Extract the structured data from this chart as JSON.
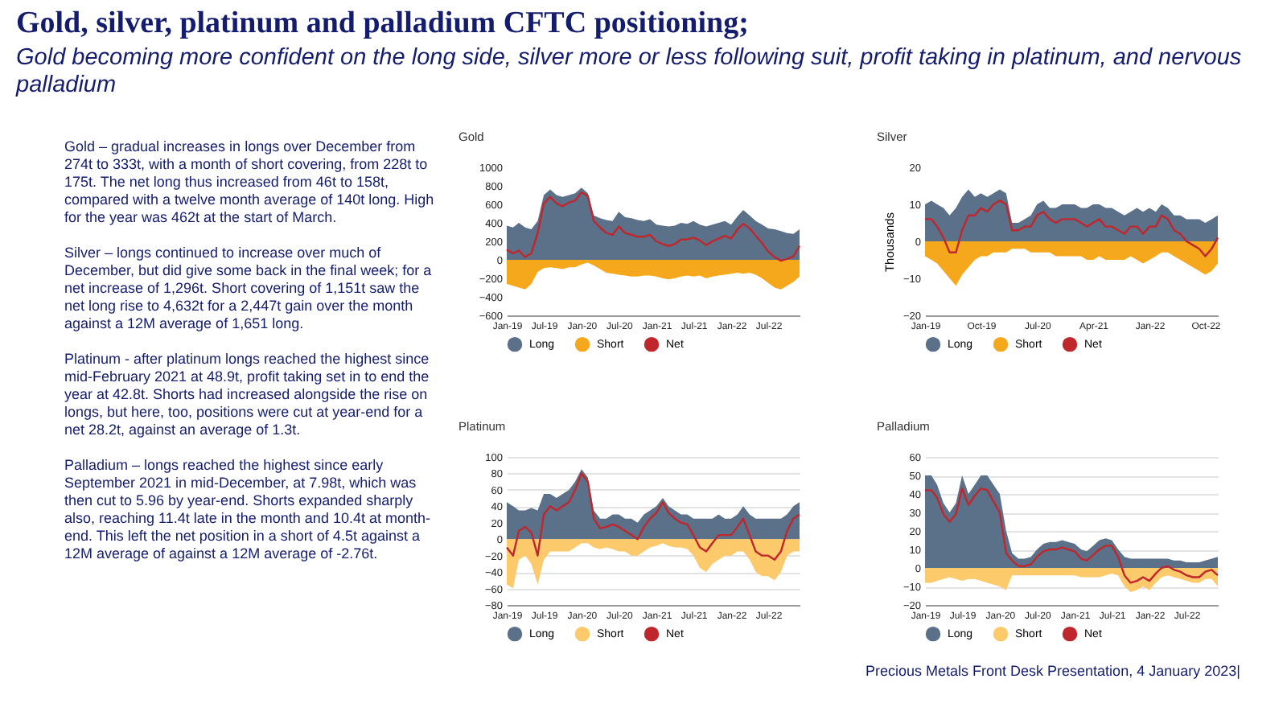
{
  "chart_data": [
    {
      "type": "other",
      "title": "Gold, silver, platinum and palladium CFTC positioning;",
      "subtitle": "Gold becoming more confident on the long side, silver more or less following suit, profit taking in platinum, and nervous palladium",
      "annotations": [
        "Gold – gradual increases in longs over December from 274t to 333t, with a month of short covering, from 228t to 175t.  The net long thus increased from 46t to 158t, compared with a twelve month average of 140t long. High for the year was 462t at the start of March.",
        "Silver – longs continued to increase over much of December, but did give some back in the final week; for a net increase of 1,296t.  Short covering of 1,151t saw the net long rise to 4,632t for a 2,447t gain over the month against a 12M average of 1,651 long.",
        "Platinum - after platinum longs reached the highest since mid-February 2021 at 48.9t, profit taking set in to end the year at 42.8t.  Shorts had increased alongside the rise on longs, but here, too, positions were cut at year-end for a net 28.2t, against an average of 1.3t.",
        "Palladium – longs reached the highest since early September 2021 in mid-December,  at 7.98t, which was then cut to 5.96 by year-end.  Shorts expanded sharply also, reaching 11.4t late in the month and 10.4t at month-end.  This left the net position in a short of 4.5t against a 12M average of against a 12M average of -2.76t.",
        "Precious Metals Front Desk Presentation, 4 January 2023|"
      ]
    },
    {
      "type": "area",
      "title": "Gold",
      "legend": "bottom",
      "xlim": [
        "2019-01",
        "2022-12"
      ],
      "ylim": [
        -600,
        1000
      ],
      "yticks": [
        -600,
        -400,
        -200,
        0,
        200,
        400,
        600,
        800,
        1000
      ],
      "xticks": [
        {
          "value": "2019-01",
          "label": "Jan-19"
        },
        {
          "value": "2019-07",
          "label": "Jul-19"
        },
        {
          "value": "2020-01",
          "label": "Jan-20"
        },
        {
          "value": "2020-07",
          "label": "Jul-20"
        },
        {
          "value": "2021-01",
          "label": "Jan-21"
        },
        {
          "value": "2021-07",
          "label": "Jul-21"
        },
        {
          "value": "2022-01",
          "label": "Jan-22"
        },
        {
          "value": "2022-07",
          "label": "Jul-22"
        }
      ],
      "x": [
        "2019-01",
        "2019-02",
        "2019-03",
        "2019-04",
        "2019-05",
        "2019-06",
        "2019-07",
        "2019-08",
        "2019-09",
        "2019-10",
        "2019-11",
        "2019-12",
        "2020-01",
        "2020-02",
        "2020-03",
        "2020-04",
        "2020-05",
        "2020-06",
        "2020-07",
        "2020-08",
        "2020-09",
        "2020-10",
        "2020-11",
        "2020-12",
        "2021-01",
        "2021-02",
        "2021-03",
        "2021-04",
        "2021-05",
        "2021-06",
        "2021-07",
        "2021-08",
        "2021-09",
        "2021-10",
        "2021-11",
        "2021-12",
        "2022-01",
        "2022-02",
        "2022-03",
        "2022-04",
        "2022-05",
        "2022-06",
        "2022-07",
        "2022-08",
        "2022-09",
        "2022-10",
        "2022-11",
        "2022-12"
      ],
      "series": [
        {
          "name": "Long",
          "color": "#5b7089",
          "values": [
            370,
            350,
            400,
            350,
            330,
            420,
            700,
            760,
            700,
            680,
            700,
            720,
            780,
            720,
            480,
            450,
            430,
            420,
            520,
            460,
            450,
            430,
            420,
            440,
            380,
            370,
            360,
            370,
            400,
            390,
            420,
            380,
            360,
            380,
            400,
            420,
            380,
            470,
            540,
            480,
            420,
            380,
            340,
            330,
            310,
            290,
            280,
            330
          ]
        },
        {
          "name": "Short",
          "color": "#f5a81c",
          "values": [
            -260,
            -280,
            -300,
            -320,
            -260,
            -130,
            -90,
            -80,
            -90,
            -100,
            -80,
            -80,
            -50,
            -30,
            -60,
            -100,
            -140,
            -150,
            -160,
            -170,
            -180,
            -180,
            -170,
            -170,
            -180,
            -200,
            -210,
            -200,
            -180,
            -170,
            -180,
            -170,
            -200,
            -180,
            -170,
            -160,
            -150,
            -140,
            -150,
            -140,
            -160,
            -200,
            -250,
            -300,
            -320,
            -280,
            -240,
            -180
          ]
        },
        {
          "name": "Net",
          "type": "line",
          "color": "#c0272d",
          "values": [
            110,
            70,
            100,
            30,
            70,
            290,
            610,
            680,
            610,
            580,
            620,
            640,
            730,
            690,
            420,
            350,
            290,
            270,
            360,
            290,
            270,
            250,
            250,
            270,
            200,
            170,
            150,
            170,
            220,
            220,
            240,
            210,
            160,
            200,
            230,
            260,
            230,
            330,
            390,
            340,
            260,
            180,
            90,
            30,
            -10,
            10,
            40,
            150
          ]
        }
      ]
    },
    {
      "type": "area",
      "title": "Silver",
      "ylabel": "Thousands",
      "legend": "bottom",
      "xlim": [
        "2019-01",
        "2022-12"
      ],
      "ylim": [
        -20,
        20
      ],
      "yticks": [
        -20,
        -10,
        0,
        10,
        20
      ],
      "xticks": [
        {
          "value": "2019-01",
          "label": "Jan-19"
        },
        {
          "value": "2019-10",
          "label": "Oct-19"
        },
        {
          "value": "2020-07",
          "label": "Jul-20"
        },
        {
          "value": "2021-04",
          "label": "Apr-21"
        },
        {
          "value": "2022-01",
          "label": "Jan-22"
        },
        {
          "value": "2022-10",
          "label": "Oct-22"
        }
      ],
      "x": [
        "2019-01",
        "2019-02",
        "2019-03",
        "2019-04",
        "2019-05",
        "2019-06",
        "2019-07",
        "2019-08",
        "2019-09",
        "2019-10",
        "2019-11",
        "2019-12",
        "2020-01",
        "2020-02",
        "2020-03",
        "2020-04",
        "2020-05",
        "2020-06",
        "2020-07",
        "2020-08",
        "2020-09",
        "2020-10",
        "2020-11",
        "2020-12",
        "2021-01",
        "2021-02",
        "2021-03",
        "2021-04",
        "2021-05",
        "2021-06",
        "2021-07",
        "2021-08",
        "2021-09",
        "2021-10",
        "2021-11",
        "2021-12",
        "2022-01",
        "2022-02",
        "2022-03",
        "2022-04",
        "2022-05",
        "2022-06",
        "2022-07",
        "2022-08",
        "2022-09",
        "2022-10",
        "2022-11",
        "2022-12"
      ],
      "series": [
        {
          "name": "Long",
          "color": "#5b7089",
          "values": [
            10,
            11,
            10,
            9,
            7,
            9,
            12,
            14,
            12,
            13,
            12,
            13,
            14,
            13,
            5,
            5,
            6,
            7,
            10,
            11,
            9,
            9,
            10,
            10,
            10,
            9,
            9,
            10,
            10,
            9,
            9,
            8,
            7,
            8,
            9,
            8,
            9,
            8,
            10,
            9,
            7,
            7,
            6,
            6,
            6,
            5,
            6,
            7
          ]
        },
        {
          "name": "Short",
          "color": "#f5a81c",
          "values": [
            -4,
            -5,
            -6,
            -8,
            -10,
            -12,
            -9,
            -7,
            -5,
            -4,
            -4,
            -3,
            -3,
            -3,
            -2,
            -2,
            -2,
            -3,
            -3,
            -3,
            -3,
            -4,
            -4,
            -4,
            -4,
            -4,
            -5,
            -5,
            -4,
            -5,
            -5,
            -5,
            -5,
            -4,
            -5,
            -6,
            -5,
            -4,
            -3,
            -3,
            -4,
            -5,
            -6,
            -7,
            -8,
            -9,
            -8,
            -6
          ]
        },
        {
          "name": "Net",
          "type": "line",
          "color": "#c0272d",
          "values": [
            6,
            6,
            4,
            1,
            -3,
            -3,
            3,
            7,
            7,
            9,
            8,
            10,
            11,
            10,
            3,
            3,
            4,
            4,
            7,
            8,
            6,
            5,
            6,
            6,
            6,
            5,
            4,
            5,
            6,
            4,
            4,
            3,
            2,
            4,
            4,
            2,
            4,
            4,
            7,
            6,
            3,
            2,
            0,
            -1,
            -2,
            -4,
            -2,
            1
          ]
        }
      ]
    },
    {
      "type": "area",
      "title": "Platinum",
      "legend": "bottom",
      "grid": "y",
      "xlim": [
        "2019-01",
        "2022-12"
      ],
      "ylim": [
        -80,
        100
      ],
      "yticks": [
        -80,
        -60,
        -40,
        -20,
        0,
        20,
        40,
        60,
        80,
        100
      ],
      "xticks": [
        {
          "value": "2019-01",
          "label": "Jan-19"
        },
        {
          "value": "2019-07",
          "label": "Jul-19"
        },
        {
          "value": "2020-01",
          "label": "Jan-20"
        },
        {
          "value": "2020-07",
          "label": "Jul-20"
        },
        {
          "value": "2021-01",
          "label": "Jan-21"
        },
        {
          "value": "2021-07",
          "label": "Jul-21"
        },
        {
          "value": "2022-01",
          "label": "Jan-22"
        },
        {
          "value": "2022-07",
          "label": "Jul-22"
        }
      ],
      "x": [
        "2019-01",
        "2019-02",
        "2019-03",
        "2019-04",
        "2019-05",
        "2019-06",
        "2019-07",
        "2019-08",
        "2019-09",
        "2019-10",
        "2019-11",
        "2019-12",
        "2020-01",
        "2020-02",
        "2020-03",
        "2020-04",
        "2020-05",
        "2020-06",
        "2020-07",
        "2020-08",
        "2020-09",
        "2020-10",
        "2020-11",
        "2020-12",
        "2021-01",
        "2021-02",
        "2021-03",
        "2021-04",
        "2021-05",
        "2021-06",
        "2021-07",
        "2021-08",
        "2021-09",
        "2021-10",
        "2021-11",
        "2021-12",
        "2022-01",
        "2022-02",
        "2022-03",
        "2022-04",
        "2022-05",
        "2022-06",
        "2022-07",
        "2022-08",
        "2022-09",
        "2022-10",
        "2022-11",
        "2022-12"
      ],
      "series": [
        {
          "name": "Long",
          "color": "#5b7089",
          "values": [
            45,
            40,
            35,
            35,
            38,
            35,
            55,
            55,
            50,
            55,
            60,
            70,
            85,
            75,
            35,
            25,
            25,
            30,
            30,
            25,
            25,
            20,
            30,
            35,
            40,
            50,
            40,
            35,
            30,
            30,
            25,
            25,
            25,
            25,
            30,
            25,
            25,
            30,
            40,
            30,
            25,
            25,
            25,
            25,
            25,
            30,
            40,
            45
          ]
        },
        {
          "name": "Short",
          "color": "#fcc96b",
          "values": [
            -55,
            -60,
            -25,
            -20,
            -30,
            -55,
            -25,
            -15,
            -15,
            -15,
            -15,
            -10,
            -5,
            -5,
            -10,
            -12,
            -10,
            -12,
            -15,
            -15,
            -20,
            -20,
            -15,
            -10,
            -8,
            -5,
            -8,
            -10,
            -10,
            -12,
            -20,
            -35,
            -40,
            -30,
            -25,
            -20,
            -20,
            -15,
            -15,
            -25,
            -40,
            -45,
            -45,
            -50,
            -40,
            -20,
            -15,
            -15
          ]
        },
        {
          "name": "Net",
          "type": "line",
          "color": "#c0272d",
          "values": [
            -10,
            -20,
            10,
            15,
            8,
            -20,
            30,
            40,
            35,
            40,
            45,
            60,
            80,
            70,
            25,
            13,
            15,
            18,
            15,
            10,
            5,
            0,
            15,
            25,
            32,
            45,
            32,
            25,
            20,
            18,
            5,
            -10,
            -15,
            -5,
            5,
            5,
            5,
            15,
            25,
            5,
            -15,
            -20,
            -20,
            -25,
            -15,
            10,
            25,
            30
          ]
        }
      ]
    },
    {
      "type": "area",
      "title": "Palladium",
      "legend": "bottom",
      "grid": "y",
      "xlim": [
        "2019-01",
        "2022-12"
      ],
      "ylim": [
        -20,
        60
      ],
      "yticks": [
        -20,
        -10,
        0,
        10,
        20,
        30,
        40,
        50,
        60
      ],
      "xticks": [
        {
          "value": "2019-01",
          "label": "Jan-19"
        },
        {
          "value": "2019-07",
          "label": "Jul-19"
        },
        {
          "value": "2020-01",
          "label": "Jan-20"
        },
        {
          "value": "2020-07",
          "label": "Jul-20"
        },
        {
          "value": "2021-01",
          "label": "Jan-21"
        },
        {
          "value": "2021-07",
          "label": "Jul-21"
        },
        {
          "value": "2022-01",
          "label": "Jan-22"
        },
        {
          "value": "2022-07",
          "label": "Jul-22"
        }
      ],
      "x": [
        "2019-01",
        "2019-02",
        "2019-03",
        "2019-04",
        "2019-05",
        "2019-06",
        "2019-07",
        "2019-08",
        "2019-09",
        "2019-10",
        "2019-11",
        "2019-12",
        "2020-01",
        "2020-02",
        "2020-03",
        "2020-04",
        "2020-05",
        "2020-06",
        "2020-07",
        "2020-08",
        "2020-09",
        "2020-10",
        "2020-11",
        "2020-12",
        "2021-01",
        "2021-02",
        "2021-03",
        "2021-04",
        "2021-05",
        "2021-06",
        "2021-07",
        "2021-08",
        "2021-09",
        "2021-10",
        "2021-11",
        "2021-12",
        "2022-01",
        "2022-02",
        "2022-03",
        "2022-04",
        "2022-05",
        "2022-06",
        "2022-07",
        "2022-08",
        "2022-09",
        "2022-10",
        "2022-11",
        "2022-12"
      ],
      "series": [
        {
          "name": "Long",
          "color": "#5b7089",
          "values": [
            50,
            50,
            45,
            35,
            30,
            35,
            50,
            40,
            45,
            50,
            50,
            45,
            40,
            20,
            8,
            5,
            5,
            6,
            10,
            13,
            14,
            14,
            15,
            14,
            13,
            10,
            9,
            12,
            15,
            16,
            15,
            10,
            6,
            5,
            5,
            5,
            5,
            5,
            5,
            5,
            4,
            4,
            3,
            3,
            3,
            4,
            5,
            6
          ]
        },
        {
          "name": "Short",
          "color": "#fcc96b",
          "values": [
            -8,
            -8,
            -7,
            -6,
            -5,
            -6,
            -7,
            -6,
            -6,
            -7,
            -8,
            -9,
            -10,
            -12,
            -4,
            -4,
            -4,
            -4,
            -4,
            -4,
            -4,
            -4,
            -4,
            -4,
            -4,
            -5,
            -5,
            -5,
            -5,
            -4,
            -3,
            -4,
            -10,
            -13,
            -12,
            -10,
            -12,
            -8,
            -5,
            -4,
            -5,
            -6,
            -7,
            -8,
            -8,
            -6,
            -6,
            -10
          ]
        },
        {
          "name": "Net",
          "type": "line",
          "color": "#c0272d",
          "values": [
            42,
            42,
            38,
            29,
            25,
            29,
            43,
            34,
            39,
            43,
            42,
            36,
            30,
            8,
            4,
            1,
            1,
            2,
            6,
            9,
            10,
            10,
            11,
            10,
            9,
            5,
            4,
            7,
            10,
            12,
            12,
            6,
            -4,
            -8,
            -7,
            -5,
            -7,
            -3,
            0,
            1,
            -1,
            -2,
            -4,
            -5,
            -5,
            -2,
            -1,
            -4
          ]
        }
      ]
    }
  ]
}
